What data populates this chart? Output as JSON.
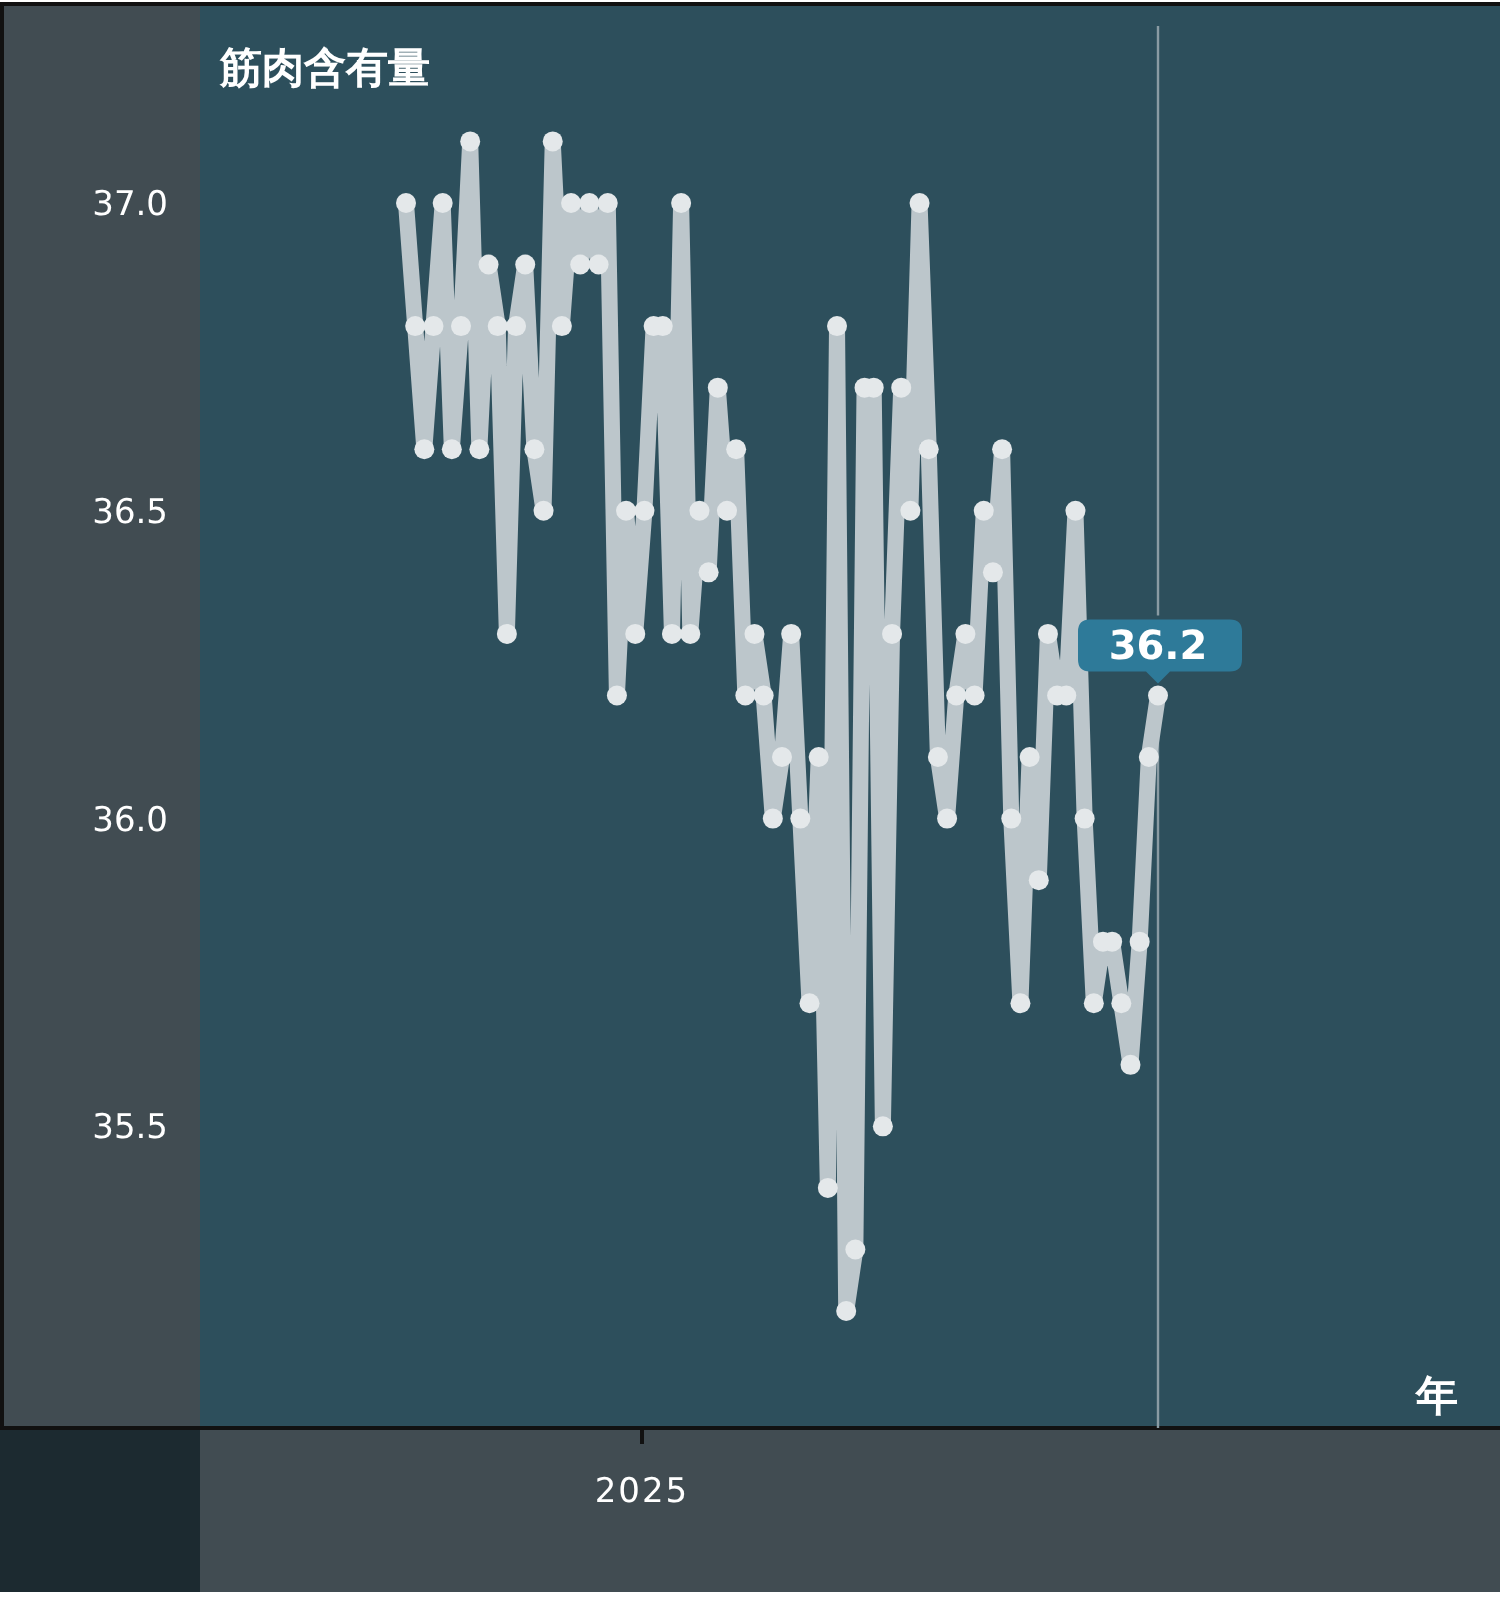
{
  "chart_data": {
    "type": "line",
    "ylabel": "筋肉含有量",
    "categories": [
      null,
      null,
      null,
      null,
      null,
      null,
      null,
      null,
      null,
      null,
      null,
      null,
      null,
      null,
      null,
      null,
      null,
      null,
      null,
      null,
      null,
      null,
      null,
      null,
      null,
      null,
      null,
      null,
      null,
      null,
      null,
      null,
      null,
      null,
      null,
      null,
      null,
      null,
      null,
      null,
      null,
      null,
      null,
      null,
      null,
      null,
      null,
      null,
      null,
      null,
      null,
      null,
      null,
      null,
      null,
      null,
      null,
      null,
      null,
      null,
      null,
      null,
      null,
      null,
      null,
      null,
      null,
      null,
      null,
      null,
      null,
      null,
      null,
      null,
      null,
      null,
      null,
      null,
      null,
      null,
      null,
      null,
      null
    ],
    "ylim": [
      35.01,
      37.32
    ],
    "yticks": [
      {
        "value": 35.5,
        "label": "35.5"
      },
      {
        "value": 36,
        "label": "36.0"
      },
      {
        "value": 36.5,
        "label": "36.5"
      },
      {
        "value": 37,
        "label": "37.0"
      }
    ],
    "marker": "circle",
    "line_style": "solid",
    "series": [
      {
        "color": "#bcc6cb",
        "values": [
          37.0,
          36.8,
          36.6,
          36.8,
          37.0,
          36.6,
          36.8,
          37.1,
          36.6,
          36.9,
          36.8,
          36.3,
          36.8,
          36.9,
          36.6,
          36.5,
          37.1,
          36.8,
          37.0,
          36.9,
          37.0,
          36.9,
          37.0,
          36.2,
          36.5,
          36.3,
          36.5,
          36.8,
          36.8,
          36.3,
          37.0,
          36.3,
          36.5,
          36.4,
          36.7,
          36.5,
          36.6,
          36.2,
          36.3,
          36.2,
          36.0,
          36.1,
          36.3,
          36.0,
          35.7,
          36.1,
          35.4,
          36.8,
          35.2,
          35.3,
          36.7,
          36.7,
          35.5,
          36.3,
          36.7,
          36.5,
          37.0,
          36.6,
          36.1,
          36.0,
          36.2,
          36.3,
          36.2,
          36.5,
          36.4,
          36.6,
          36.0,
          35.7,
          36.1,
          35.9,
          36.3,
          36.2,
          36.2,
          36.5,
          36.0,
          35.7,
          35.8,
          35.8,
          35.7,
          35.6,
          35.8,
          36.1,
          36.2
        ]
      }
    ],
    "annotations": [
      {
        "text": "36.2",
        "y": 36.2
      },
      "2025",
      "年"
    ]
  }
}
